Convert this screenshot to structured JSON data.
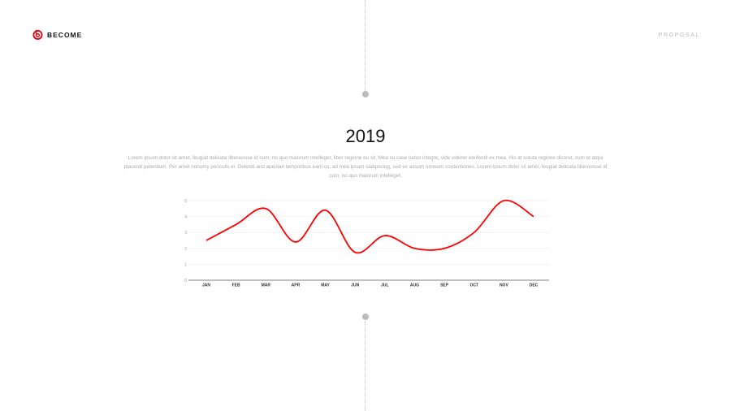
{
  "header": {
    "brand": "BECOME",
    "right_label": "PROPOSAL"
  },
  "main": {
    "year": "2019",
    "description": "Lorem ipsum dolor sit amet, feugiat delicata liberavisse id cum, no quo maiorum intelleget, liber regione eu sit. Mea cu case ludus integre, vide viderer eleifendi ex mea. His at soluta regione dicoret, cum et atqui placerat petentium. Per amet nonumy periculis ei. Deleniti and apeirian temporibus eam cu, ad mea ipsum sadipscing, sed ex assum omnium contentiones. Lorem ipsum dolor sit amet, feugiat delicata liberavisse id cum, no quo maiorum intelleget."
  },
  "colors": {
    "accent": "#e30613",
    "line": "#ff0000"
  },
  "chart_data": {
    "type": "line",
    "categories": [
      "JAN",
      "FEB",
      "MAR",
      "APR",
      "MAY",
      "JUN",
      "JUL",
      "AUG",
      "SEP",
      "OCT",
      "NOV",
      "DEC"
    ],
    "series": [
      {
        "values": [
          2.5,
          3.5,
          4.5,
          2.4,
          4.4,
          1.75,
          2.8,
          2.0,
          2.0,
          3.0,
          5.0,
          4.0
        ]
      }
    ],
    "yticks": [
      0,
      1,
      2,
      3,
      4,
      5
    ],
    "ylim": [
      0,
      5
    ],
    "smooth": true,
    "grid": true
  }
}
